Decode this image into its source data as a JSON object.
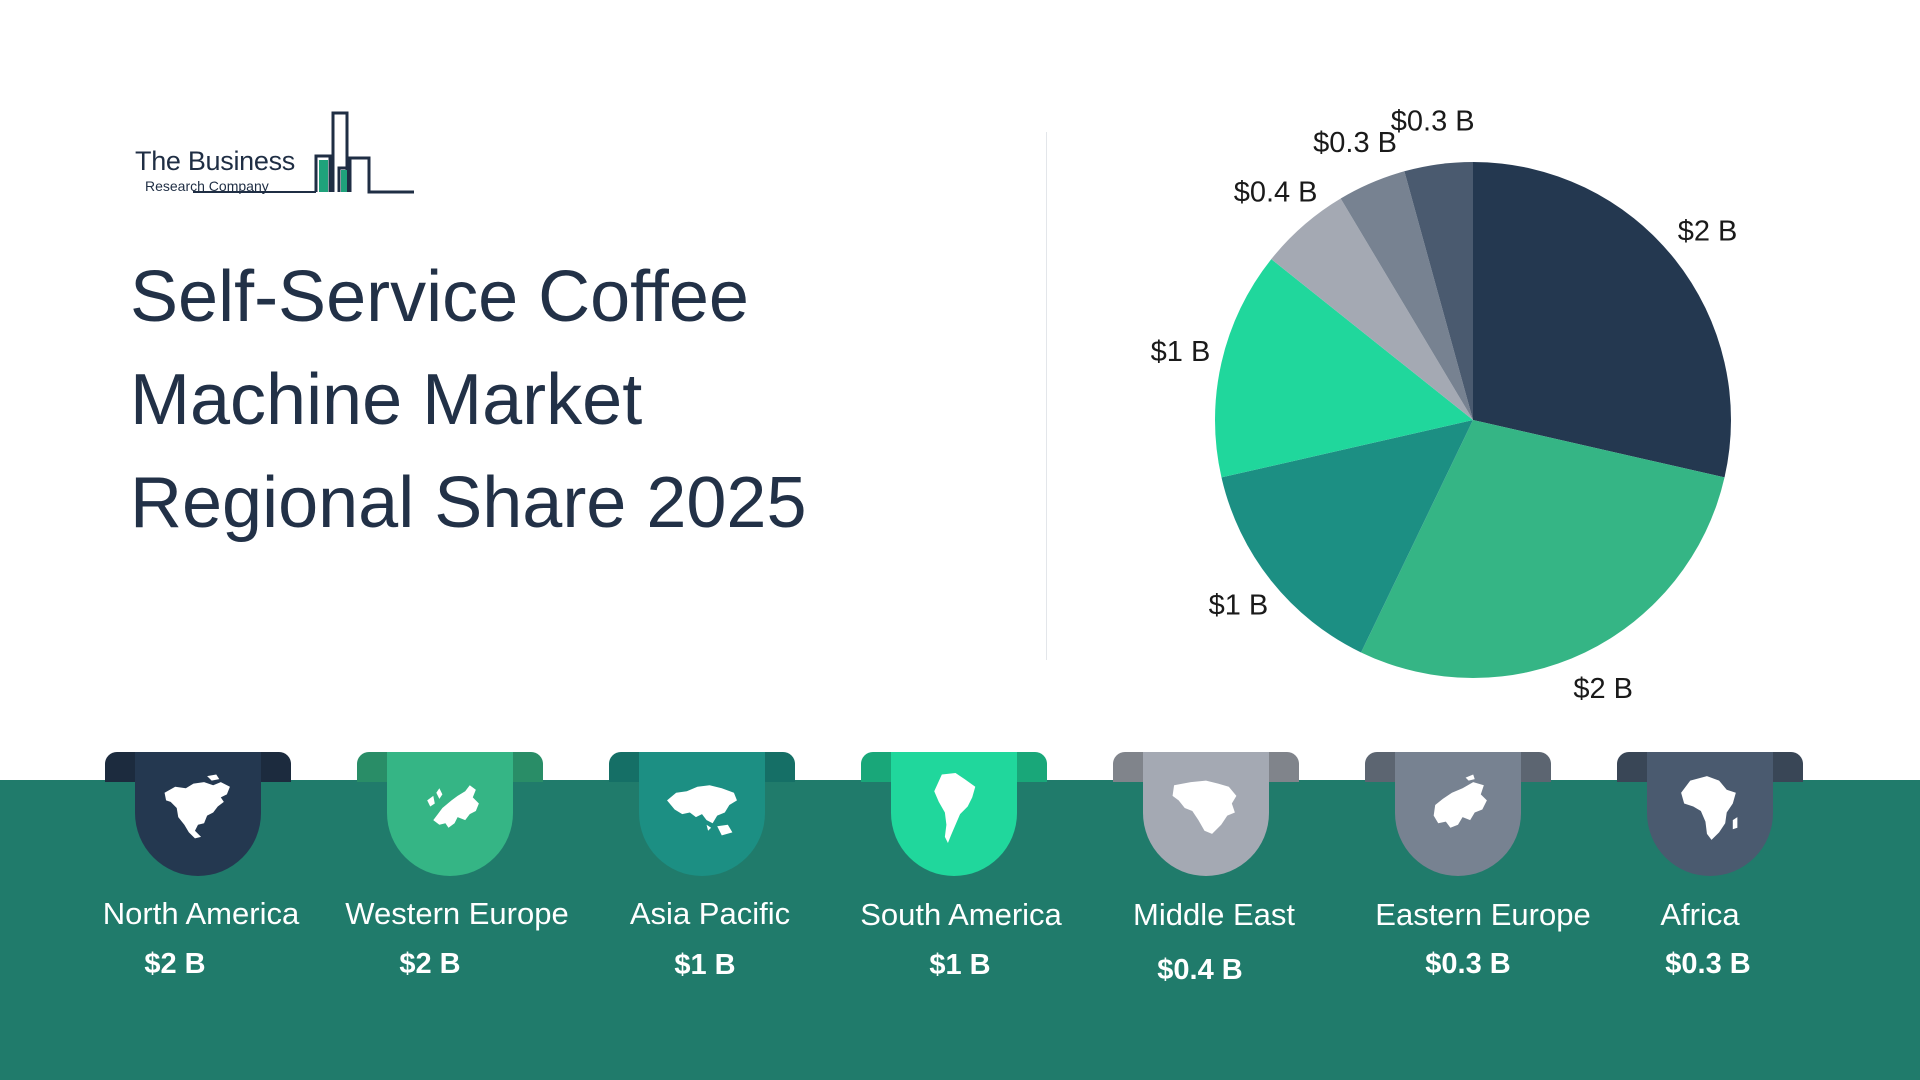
{
  "logo": {
    "line1": "The Business",
    "line2": "Research Company"
  },
  "title": {
    "line1": "Self-Service Coffee",
    "line2": "Machine Market",
    "line3": "Regional Share 2025"
  },
  "colors": {
    "band": "#207b6b",
    "north_america": "#243850",
    "western_europe": "#35b585",
    "asia_pacific": "#1c8f83",
    "south_america": "#20d79c",
    "middle_east": "#a4a9b3",
    "eastern_europe": "#778291",
    "africa": "#4a5a6f"
  },
  "chart_data": {
    "type": "pie",
    "title": "Self-Service Coffee Machine Market Regional Share 2025",
    "slices": [
      {
        "label": "North America",
        "value": 2,
        "display": "$2 B",
        "color": "#243850"
      },
      {
        "label": "Western Europe",
        "value": 2,
        "display": "$2 B",
        "color": "#35b585"
      },
      {
        "label": "Asia Pacific",
        "value": 1,
        "display": "$1 B",
        "color": "#1c8f83"
      },
      {
        "label": "South America",
        "value": 1,
        "display": "$1 B",
        "color": "#20d79c"
      },
      {
        "label": "Middle East",
        "value": 0.4,
        "display": "$0.4 B",
        "color": "#a4a9b3"
      },
      {
        "label": "Eastern Europe",
        "value": 0.3,
        "display": "$0.3 B",
        "color": "#778291"
      },
      {
        "label": "Africa",
        "value": 0.3,
        "display": "$0.3 B",
        "color": "#4a5a6f"
      }
    ]
  },
  "regions": [
    {
      "name": "North America",
      "value": "$2 B",
      "color": "#243850",
      "icon": "north-america-map-icon"
    },
    {
      "name": "Western Europe",
      "value": "$2 B",
      "color": "#35b585",
      "icon": "western-europe-map-icon"
    },
    {
      "name": "Asia Pacific",
      "value": "$1 B",
      "color": "#1c8f83",
      "icon": "asia-pacific-map-icon"
    },
    {
      "name": "South America",
      "value": "$1 B",
      "color": "#20d79c",
      "icon": "south-america-map-icon"
    },
    {
      "name": "Middle East",
      "value": "$0.4 B",
      "color": "#a4a9b3",
      "icon": "middle-east-map-icon"
    },
    {
      "name": "Eastern Europe",
      "value": "$0.3 B",
      "color": "#778291",
      "icon": "eastern-europe-map-icon"
    },
    {
      "name": "Africa",
      "value": "$0.3 B",
      "color": "#4a5a6f",
      "icon": "africa-map-icon"
    }
  ]
}
